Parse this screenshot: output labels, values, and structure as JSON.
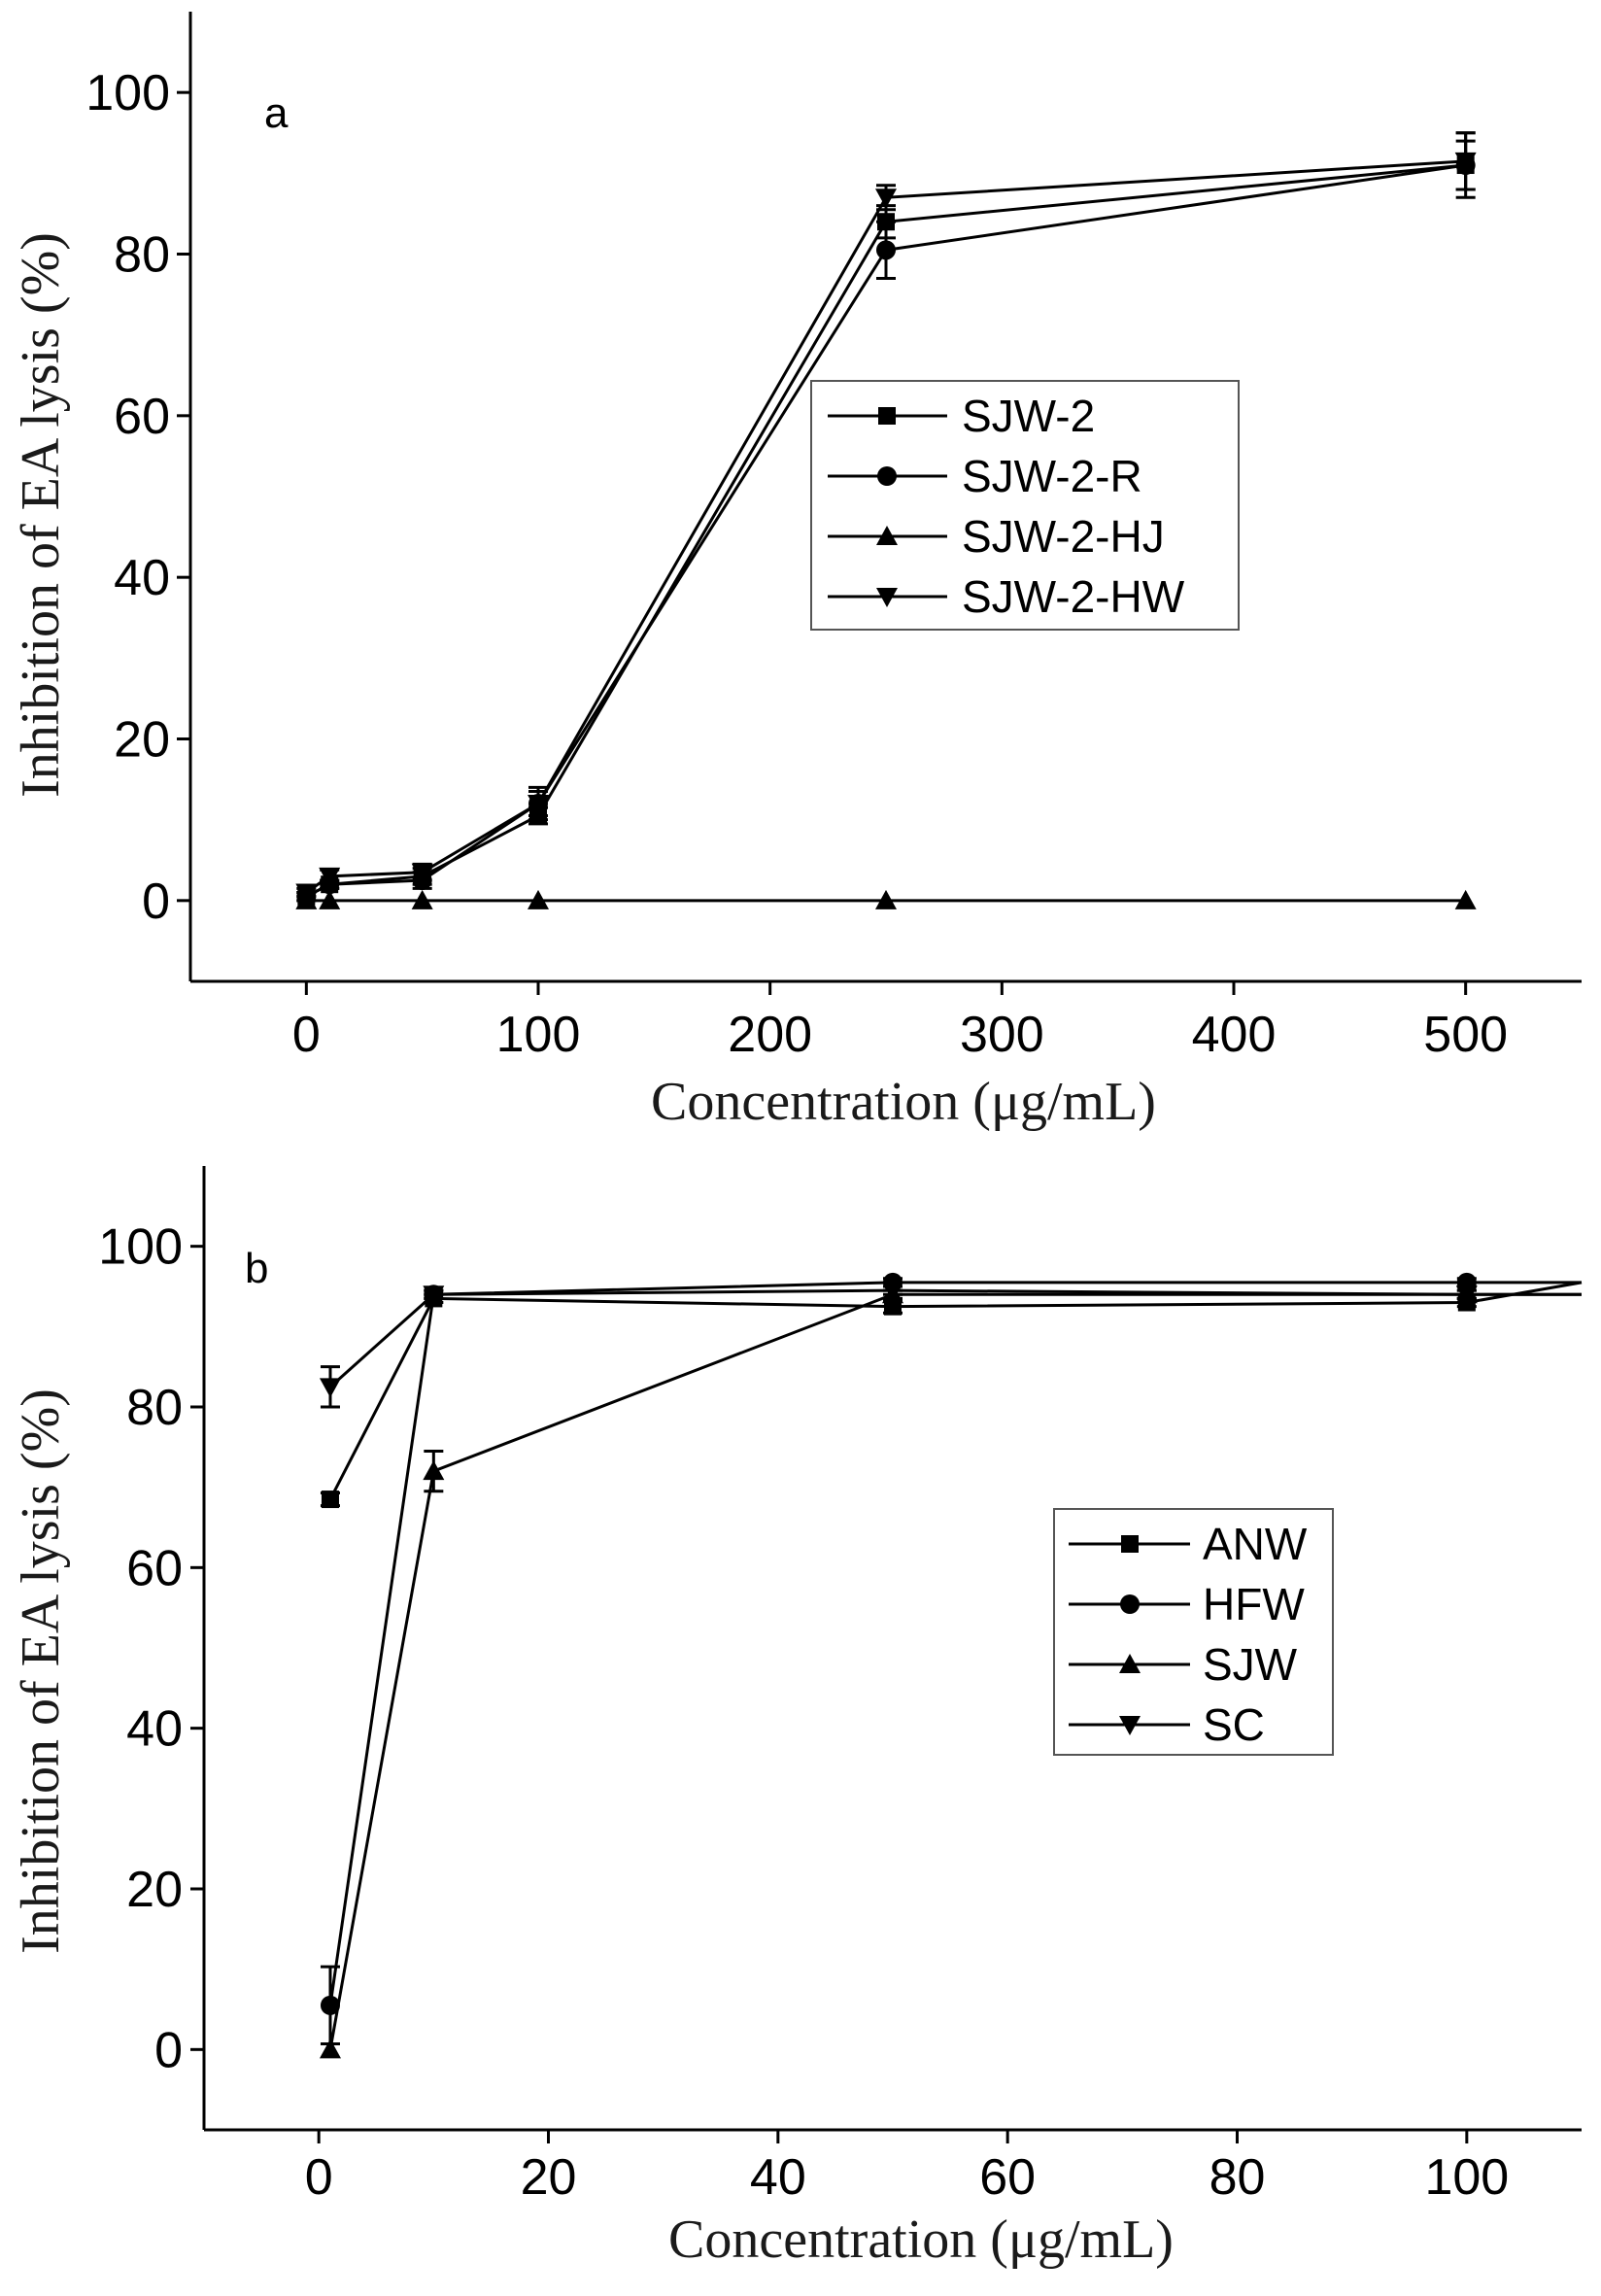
{
  "chart_data": [
    {
      "id": "a",
      "type": "line",
      "panel_label": "a",
      "xlabel": "Concentration (μg/mL)",
      "ylabel": "Inhibition of EA lysis (%)",
      "xlim": [
        -50,
        550
      ],
      "ylim": [
        -10,
        110
      ],
      "xticks": [
        0,
        100,
        200,
        300,
        400,
        500
      ],
      "yticks": [
        0,
        20,
        40,
        60,
        80,
        100
      ],
      "x": [
        0,
        10,
        50,
        100,
        250,
        500
      ],
      "legend_position": "center-right",
      "series": [
        {
          "name": "SJW-2",
          "marker": "square",
          "values": [
            0.5,
            2,
            3,
            10.5,
            84,
            91
          ],
          "errors": [
            0.5,
            0.5,
            1,
            1,
            2,
            3
          ]
        },
        {
          "name": "SJW-2-R",
          "marker": "circle",
          "values": [
            0.5,
            2,
            2.5,
            12,
            80.5,
            91
          ],
          "errors": [
            0.5,
            0.5,
            1,
            1.5,
            3.5,
            4
          ]
        },
        {
          "name": "SJW-2-HJ",
          "marker": "triangle-up",
          "values": [
            0,
            0,
            0,
            0,
            0,
            0
          ],
          "errors": [
            0,
            0,
            0,
            0,
            0,
            0
          ]
        },
        {
          "name": "SJW-2-HW",
          "marker": "triangle-down",
          "values": [
            1,
            3,
            3.5,
            12,
            87,
            91.5
          ],
          "errors": [
            0.5,
            0.8,
            1,
            2,
            1.5,
            3.5
          ]
        }
      ]
    },
    {
      "id": "b",
      "type": "line",
      "panel_label": "b",
      "xlabel": "Concentration (μg/mL)",
      "ylabel": "Inhibition of EA lysis (%)",
      "xlim": [
        -10,
        110
      ],
      "ylim": [
        -10,
        110
      ],
      "xticks": [
        0,
        20,
        40,
        60,
        80,
        100
      ],
      "yticks": [
        0,
        20,
        40,
        60,
        80,
        100
      ],
      "x": [
        1,
        10,
        50,
        100
      ],
      "legend_position": "center-right",
      "series": [
        {
          "name": "ANW",
          "marker": "square",
          "values": [
            68.5,
            93.5,
            92.5,
            93
          ],
          "errors": [
            0.8,
            0.5,
            0.8,
            0.5
          ],
          "extend_to": 95.5
        },
        {
          "name": "HFW",
          "marker": "circle",
          "values": [
            5.5,
            94,
            95.5,
            95.5
          ],
          "errors": [
            4.8,
            0.5,
            0.5,
            0.5
          ],
          "extend_to": 95.5
        },
        {
          "name": "SJW",
          "marker": "triangle-up",
          "values": [
            0,
            72,
            94,
            94
          ],
          "errors": [
            0,
            2.5,
            0.5,
            0.5
          ],
          "extend_to": 94
        },
        {
          "name": "SC",
          "marker": "triangle-down",
          "values": [
            82.5,
            94,
            94.5,
            94
          ],
          "errors": [
            2.5,
            0.5,
            0.5,
            0.5
          ],
          "extend_to": 94
        }
      ]
    }
  ]
}
